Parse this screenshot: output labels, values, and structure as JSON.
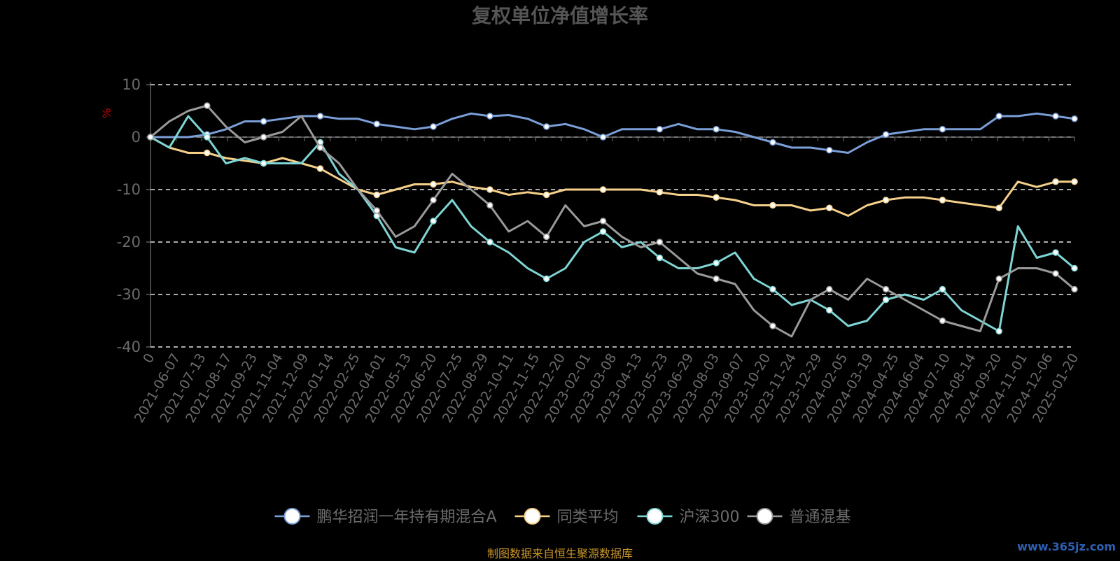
{
  "chart_data": {
    "type": "line",
    "title": "复权单位净值增长率",
    "ylabel": "%",
    "ylim": [
      -40,
      10
    ],
    "yticks": [
      10,
      0,
      -10,
      -20,
      -30,
      -40
    ],
    "grid": true,
    "legend_position": "bottom",
    "x_ticks": [
      "0",
      "2021-06-07",
      "2021-07-13",
      "2021-08-17",
      "2021-09-23",
      "2021-11-04",
      "2021-12-09",
      "2022-01-14",
      "2022-02-25",
      "2022-04-01",
      "2022-05-13",
      "2022-06-20",
      "2022-07-25",
      "2022-08-29",
      "2022-10-11",
      "2022-11-15",
      "2022-12-20",
      "2023-02-01",
      "2023-03-08",
      "2023-04-13",
      "2023-05-23",
      "2023-06-29",
      "2023-08-03",
      "2023-09-07",
      "2023-10-20",
      "2023-11-24",
      "2023-12-29",
      "2024-02-05",
      "2024-03-19",
      "2024-04-25",
      "2024-06-04",
      "2024-07-10",
      "2024-08-14",
      "2024-09-20",
      "2024-11-01",
      "2024-12-06",
      "2025-01-20"
    ],
    "series": [
      {
        "name": "鹏华招润一年持有期混合A",
        "color": "#7b9fd8",
        "values": [
          0,
          0,
          0,
          0.5,
          1.5,
          3,
          3,
          3.5,
          4,
          4,
          3.5,
          3.5,
          2.5,
          2,
          1.5,
          2,
          3.5,
          4.5,
          4,
          4.2,
          3.5,
          2,
          2.5,
          1.5,
          0,
          1.5,
          1.5,
          1.5,
          2.5,
          1.5,
          1.5,
          1,
          0,
          -1,
          -2,
          -2,
          -2.5,
          -3,
          -1,
          0.5,
          1,
          1.5,
          1.5,
          1.5,
          1.5,
          4,
          4,
          4.5,
          4,
          3.5
        ]
      },
      {
        "name": "同类平均",
        "color": "#f5d08a",
        "values": [
          0,
          -2,
          -3,
          -3,
          -4,
          -4.5,
          -5,
          -4,
          -5,
          -6,
          -8,
          -10,
          -11,
          -10,
          -9,
          -9,
          -8.5,
          -9.5,
          -10,
          -11,
          -10.5,
          -11,
          -10,
          -10,
          -10,
          -10,
          -10,
          -10.5,
          -11,
          -11,
          -11.5,
          -12,
          -13,
          -13,
          -13,
          -14,
          -13.5,
          -15,
          -13,
          -12,
          -11.5,
          -11.5,
          -12,
          -12.5,
          -13,
          -13.5,
          -8.5,
          -9.5,
          -8.5,
          -8.5
        ]
      },
      {
        "name": "沪深300",
        "color": "#7fd4d4",
        "values": [
          0,
          -2,
          4,
          0,
          -5,
          -4,
          -5,
          -5,
          -5,
          -1,
          -7,
          -10,
          -15,
          -21,
          -22,
          -16,
          -12,
          -17,
          -20,
          -22,
          -25,
          -27,
          -25,
          -20,
          -18,
          -21,
          -20,
          -23,
          -25,
          -25,
          -24,
          -22,
          -27,
          -29,
          -32,
          -31,
          -33,
          -36,
          -35,
          -31,
          -30,
          -31,
          -29,
          -33,
          -35,
          -37,
          -17,
          -23,
          -22,
          -25
        ]
      },
      {
        "name": "普通混基",
        "color": "#9a9a9a",
        "values": [
          0,
          3,
          5,
          6,
          2,
          -1,
          0,
          1,
          4,
          -2,
          -5,
          -10,
          -14,
          -19,
          -17,
          -12,
          -7,
          -10,
          -13,
          -18,
          -16,
          -19,
          -13,
          -17,
          -16,
          -19,
          -21,
          -20,
          -23,
          -26,
          -27,
          -28,
          -33,
          -36,
          -38,
          -31,
          -29,
          -31,
          -27,
          -29,
          -31,
          -33,
          -35,
          -36,
          -37,
          -27,
          -25,
          -25,
          -26,
          -29
        ]
      }
    ]
  },
  "source_note": "制图数据来自恒生聚源数据库",
  "watermark": "www.365jz.com"
}
